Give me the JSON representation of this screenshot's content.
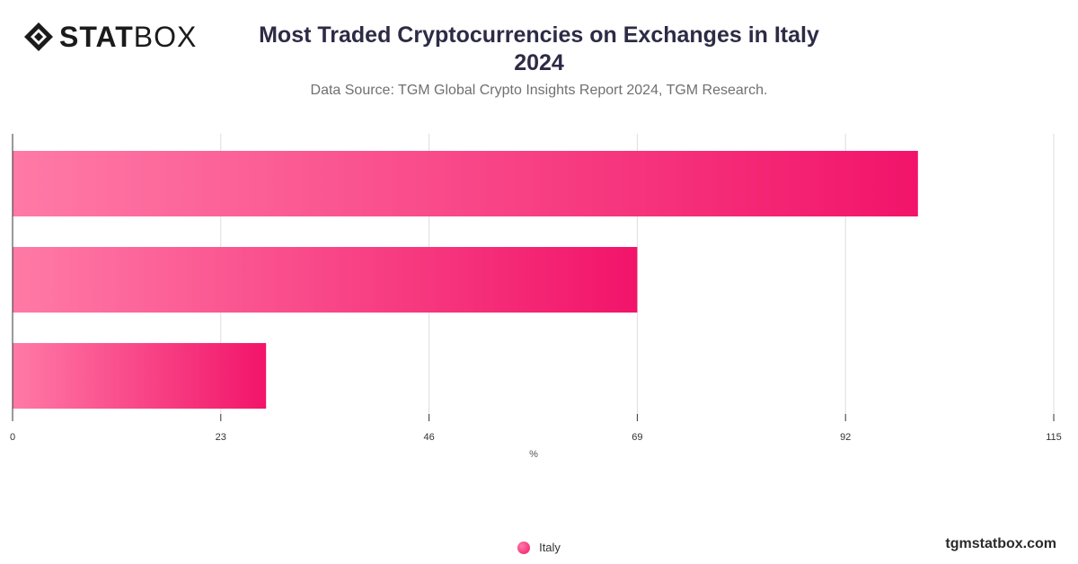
{
  "header": {
    "logo_text_bold": "STAT",
    "logo_text_light": "BOX",
    "title_line1": "Most Traded Cryptocurrencies on Exchanges in Italy",
    "title_line2": "2024",
    "subtitle": "Data Source: TGM Global Crypto Insights Report 2024, TGM Research."
  },
  "footer": {
    "brand": "tgmstatbox.com"
  },
  "colors": {
    "bar_start": "#ff7aa6",
    "bar_end": "#f2146a",
    "grid": "#dddddd",
    "axis": "#333333",
    "title": "#2d2b45"
  },
  "chart_data": {
    "type": "bar",
    "orientation": "horizontal",
    "categories": [
      "",
      "",
      ""
    ],
    "series": [
      {
        "name": "Italy",
        "values": [
          100,
          69,
          28
        ]
      }
    ],
    "xlabel": "%",
    "ylabel": "",
    "xlim": [
      0,
      115
    ],
    "xticks": [
      0,
      23,
      46,
      69,
      92,
      115
    ],
    "grid": true,
    "legend_position": "bottom-center"
  }
}
